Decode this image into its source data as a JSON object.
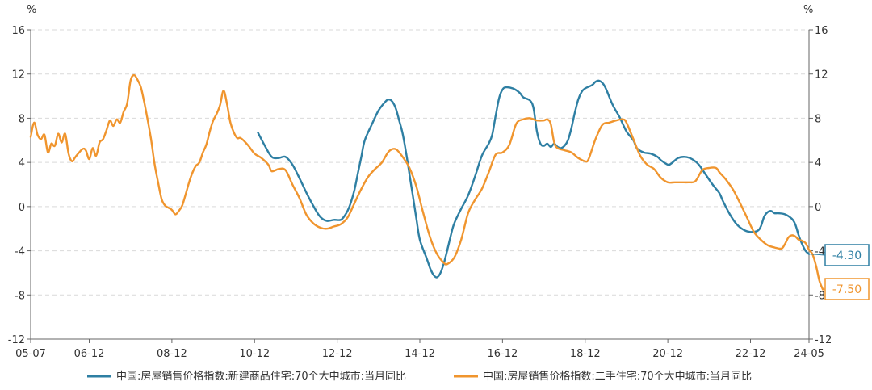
{
  "chart_data": {
    "type": "line",
    "y_unit_left": "%",
    "y_unit_right": "%",
    "ylim": [
      -12,
      16
    ],
    "yticks": [
      -12,
      -8,
      -4,
      0,
      4,
      8,
      12,
      16
    ],
    "x_ticks": [
      "05-07",
      "06-12",
      "08-12",
      "10-12",
      "12-12",
      "14-12",
      "16-12",
      "18-12",
      "20-12",
      "22-12",
      "24-05"
    ],
    "grid": "horizontal-dashed",
    "legend_position": "bottom",
    "series": [
      {
        "name": "中国:房屋销售价格指数:新建商品住宅:70个大中城市:当月同比",
        "color": "#2E7FA3",
        "end_label": "-4.30",
        "points": [
          [
            "2011-01",
            6.7
          ],
          [
            "2011-03",
            5.5
          ],
          [
            "2011-05",
            4.5
          ],
          [
            "2011-07",
            4.4
          ],
          [
            "2011-09",
            4.5
          ],
          [
            "2011-11",
            3.8
          ],
          [
            "2012-01",
            2.6
          ],
          [
            "2012-03",
            1.3
          ],
          [
            "2012-05",
            0.1
          ],
          [
            "2012-07",
            -0.9
          ],
          [
            "2012-09",
            -1.3
          ],
          [
            "2012-11",
            -1.2
          ],
          [
            "2013-01",
            -1.2
          ],
          [
            "2013-02",
            -0.9
          ],
          [
            "2013-03",
            -0.4
          ],
          [
            "2013-04",
            0.4
          ],
          [
            "2013-05",
            1.5
          ],
          [
            "2013-06",
            3.0
          ],
          [
            "2013-07",
            4.5
          ],
          [
            "2013-08",
            6.0
          ],
          [
            "2013-10",
            7.4
          ],
          [
            "2013-12",
            8.7
          ],
          [
            "2014-02",
            9.5
          ],
          [
            "2014-03",
            9.7
          ],
          [
            "2014-04",
            9.5
          ],
          [
            "2014-05",
            8.9
          ],
          [
            "2014-06",
            7.8
          ],
          [
            "2014-07",
            6.6
          ],
          [
            "2014-08",
            4.9
          ],
          [
            "2014-09",
            2.9
          ],
          [
            "2014-10",
            0.9
          ],
          [
            "2014-11",
            -1.1
          ],
          [
            "2014-12",
            -3.0
          ],
          [
            "2015-02",
            -4.7
          ],
          [
            "2015-03",
            -5.6
          ],
          [
            "2015-04",
            -6.2
          ],
          [
            "2015-05",
            -6.4
          ],
          [
            "2015-06",
            -6.0
          ],
          [
            "2015-07",
            -5.1
          ],
          [
            "2015-08",
            -3.9
          ],
          [
            "2015-09",
            -2.6
          ],
          [
            "2015-10",
            -1.5
          ],
          [
            "2015-12",
            -0.2
          ],
          [
            "2016-02",
            1.0
          ],
          [
            "2016-04",
            2.7
          ],
          [
            "2016-06",
            4.6
          ],
          [
            "2016-08",
            5.7
          ],
          [
            "2016-09",
            6.5
          ],
          [
            "2016-10",
            8.2
          ],
          [
            "2016-11",
            9.8
          ],
          [
            "2016-12",
            10.6
          ],
          [
            "2017-01",
            10.8
          ],
          [
            "2017-03",
            10.7
          ],
          [
            "2017-05",
            10.3
          ],
          [
            "2017-06",
            9.9
          ],
          [
            "2017-08",
            9.6
          ],
          [
            "2017-09",
            8.9
          ],
          [
            "2017-10",
            6.8
          ],
          [
            "2017-11",
            5.7
          ],
          [
            "2017-12",
            5.5
          ],
          [
            "2018-01",
            5.7
          ],
          [
            "2018-02",
            5.4
          ],
          [
            "2018-03",
            5.7
          ],
          [
            "2018-04",
            5.4
          ],
          [
            "2018-05",
            5.3
          ],
          [
            "2018-06",
            5.5
          ],
          [
            "2018-07",
            6.0
          ],
          [
            "2018-08",
            7.1
          ],
          [
            "2018-09",
            8.5
          ],
          [
            "2018-10",
            9.7
          ],
          [
            "2018-11",
            10.4
          ],
          [
            "2018-12",
            10.7
          ],
          [
            "2019-02",
            11.0
          ],
          [
            "2019-03",
            11.3
          ],
          [
            "2019-04",
            11.4
          ],
          [
            "2019-05",
            11.2
          ],
          [
            "2019-06",
            10.7
          ],
          [
            "2019-08",
            9.2
          ],
          [
            "2019-10",
            8.1
          ],
          [
            "2019-12",
            6.8
          ],
          [
            "2020-02",
            6.0
          ],
          [
            "2020-03",
            5.3
          ],
          [
            "2020-05",
            4.9
          ],
          [
            "2020-07",
            4.8
          ],
          [
            "2020-09",
            4.5
          ],
          [
            "2020-10",
            4.2
          ],
          [
            "2020-12",
            3.8
          ],
          [
            "2021-01",
            3.9
          ],
          [
            "2021-03",
            4.4
          ],
          [
            "2021-05",
            4.5
          ],
          [
            "2021-07",
            4.3
          ],
          [
            "2021-09",
            3.8
          ],
          [
            "2021-11",
            2.9
          ],
          [
            "2022-01",
            2.0
          ],
          [
            "2022-03",
            1.2
          ],
          [
            "2022-04",
            0.5
          ],
          [
            "2022-06",
            -0.7
          ],
          [
            "2022-08",
            -1.6
          ],
          [
            "2022-10",
            -2.1
          ],
          [
            "2022-12",
            -2.3
          ],
          [
            "2023-02",
            -2.2
          ],
          [
            "2023-03",
            -1.8
          ],
          [
            "2023-04",
            -0.9
          ],
          [
            "2023-05",
            -0.5
          ],
          [
            "2023-06",
            -0.4
          ],
          [
            "2023-07",
            -0.6
          ],
          [
            "2023-08",
            -0.6
          ],
          [
            "2023-10",
            -0.7
          ],
          [
            "2023-12",
            -1.1
          ],
          [
            "2024-01",
            -1.6
          ],
          [
            "2024-02",
            -2.6
          ],
          [
            "2024-03",
            -3.4
          ],
          [
            "2024-04",
            -4.0
          ],
          [
            "2024-05",
            -4.3
          ]
        ]
      },
      {
        "name": "中国:房屋销售价格指数:二手住宅:70个大中城市:当月同比",
        "color": "#F0952E",
        "end_label": "-7.50",
        "points": [
          [
            "2005-07",
            6.3
          ],
          [
            "2005-08",
            7.6
          ],
          [
            "2005-09",
            6.5
          ],
          [
            "2005-10",
            6.1
          ],
          [
            "2005-11",
            6.5
          ],
          [
            "2005-12",
            4.9
          ],
          [
            "2006-01",
            5.7
          ],
          [
            "2006-02",
            5.5
          ],
          [
            "2006-03",
            6.6
          ],
          [
            "2006-04",
            5.8
          ],
          [
            "2006-05",
            6.6
          ],
          [
            "2006-06",
            4.8
          ],
          [
            "2006-07",
            4.1
          ],
          [
            "2006-08",
            4.5
          ],
          [
            "2006-10",
            5.2
          ],
          [
            "2006-11",
            5.1
          ],
          [
            "2006-12",
            4.3
          ],
          [
            "2007-01",
            5.3
          ],
          [
            "2007-02",
            4.6
          ],
          [
            "2007-03",
            5.8
          ],
          [
            "2007-04",
            6.1
          ],
          [
            "2007-05",
            6.9
          ],
          [
            "2007-06",
            7.8
          ],
          [
            "2007-07",
            7.3
          ],
          [
            "2007-08",
            7.9
          ],
          [
            "2007-09",
            7.6
          ],
          [
            "2007-10",
            8.6
          ],
          [
            "2007-11",
            9.3
          ],
          [
            "2007-12",
            11.4
          ],
          [
            "2008-01",
            11.9
          ],
          [
            "2008-02",
            11.5
          ],
          [
            "2008-03",
            10.8
          ],
          [
            "2008-04",
            9.4
          ],
          [
            "2008-05",
            7.8
          ],
          [
            "2008-06",
            6.0
          ],
          [
            "2008-07",
            3.8
          ],
          [
            "2008-08",
            2.2
          ],
          [
            "2008-09",
            0.7
          ],
          [
            "2008-10",
            0.1
          ],
          [
            "2008-11",
            -0.1
          ],
          [
            "2008-12",
            -0.3
          ],
          [
            "2009-01",
            -0.7
          ],
          [
            "2009-02",
            -0.4
          ],
          [
            "2009-03",
            0.1
          ],
          [
            "2009-04",
            1.1
          ],
          [
            "2009-05",
            2.2
          ],
          [
            "2009-06",
            3.1
          ],
          [
            "2009-07",
            3.7
          ],
          [
            "2009-08",
            4.0
          ],
          [
            "2009-09",
            4.9
          ],
          [
            "2009-10",
            5.6
          ],
          [
            "2009-11",
            6.8
          ],
          [
            "2009-12",
            7.8
          ],
          [
            "2010-01",
            8.4
          ],
          [
            "2010-02",
            9.2
          ],
          [
            "2010-03",
            10.5
          ],
          [
            "2010-04",
            9.3
          ],
          [
            "2010-05",
            7.6
          ],
          [
            "2010-06",
            6.7
          ],
          [
            "2010-07",
            6.2
          ],
          [
            "2010-08",
            6.2
          ],
          [
            "2010-10",
            5.6
          ],
          [
            "2010-12",
            4.8
          ],
          [
            "2011-02",
            4.4
          ],
          [
            "2011-04",
            3.8
          ],
          [
            "2011-05",
            3.2
          ],
          [
            "2011-07",
            3.4
          ],
          [
            "2011-09",
            3.3
          ],
          [
            "2011-11",
            2.0
          ],
          [
            "2012-01",
            0.8
          ],
          [
            "2012-03",
            -0.7
          ],
          [
            "2012-05",
            -1.5
          ],
          [
            "2012-07",
            -1.9
          ],
          [
            "2012-09",
            -2.0
          ],
          [
            "2012-11",
            -1.8
          ],
          [
            "2013-01",
            -1.6
          ],
          [
            "2013-03",
            -1.0
          ],
          [
            "2013-05",
            0.3
          ],
          [
            "2013-07",
            1.6
          ],
          [
            "2013-09",
            2.7
          ],
          [
            "2013-11",
            3.4
          ],
          [
            "2014-01",
            4.0
          ],
          [
            "2014-03",
            5.0
          ],
          [
            "2014-05",
            5.2
          ],
          [
            "2014-07",
            4.5
          ],
          [
            "2014-09",
            3.5
          ],
          [
            "2014-11",
            1.8
          ],
          [
            "2015-01",
            -0.6
          ],
          [
            "2015-03",
            -2.8
          ],
          [
            "2015-05",
            -4.3
          ],
          [
            "2015-07",
            -5.1
          ],
          [
            "2015-08",
            -5.2
          ],
          [
            "2015-10",
            -4.6
          ],
          [
            "2015-12",
            -3.0
          ],
          [
            "2016-02",
            -0.6
          ],
          [
            "2016-04",
            0.6
          ],
          [
            "2016-06",
            1.6
          ],
          [
            "2016-08",
            3.1
          ],
          [
            "2016-10",
            4.7
          ],
          [
            "2016-12",
            4.9
          ],
          [
            "2017-02",
            5.6
          ],
          [
            "2017-04",
            7.5
          ],
          [
            "2017-06",
            7.9
          ],
          [
            "2017-08",
            8.0
          ],
          [
            "2017-10",
            7.8
          ],
          [
            "2017-12",
            7.8
          ],
          [
            "2018-01",
            7.9
          ],
          [
            "2018-02",
            7.5
          ],
          [
            "2018-03",
            5.8
          ],
          [
            "2018-04",
            5.3
          ],
          [
            "2018-06",
            5.1
          ],
          [
            "2018-08",
            4.9
          ],
          [
            "2018-10",
            4.4
          ],
          [
            "2018-12",
            4.1
          ],
          [
            "2019-01",
            4.3
          ],
          [
            "2019-03",
            6.1
          ],
          [
            "2019-05",
            7.4
          ],
          [
            "2019-07",
            7.6
          ],
          [
            "2019-09",
            7.8
          ],
          [
            "2019-11",
            7.9
          ],
          [
            "2019-12",
            7.6
          ],
          [
            "2020-02",
            6.1
          ],
          [
            "2020-04",
            4.6
          ],
          [
            "2020-06",
            3.8
          ],
          [
            "2020-08",
            3.4
          ],
          [
            "2020-10",
            2.6
          ],
          [
            "2020-12",
            2.2
          ],
          [
            "2021-02",
            2.2
          ],
          [
            "2021-04",
            2.2
          ],
          [
            "2021-06",
            2.2
          ],
          [
            "2021-08",
            2.3
          ],
          [
            "2021-10",
            3.3
          ],
          [
            "2021-12",
            3.5
          ],
          [
            "2022-02",
            3.5
          ],
          [
            "2022-03",
            3.1
          ],
          [
            "2022-05",
            2.4
          ],
          [
            "2022-07",
            1.5
          ],
          [
            "2022-09",
            0.3
          ],
          [
            "2022-11",
            -1.0
          ],
          [
            "2023-01",
            -2.3
          ],
          [
            "2023-03",
            -3.0
          ],
          [
            "2023-05",
            -3.5
          ],
          [
            "2023-07",
            -3.7
          ],
          [
            "2023-09",
            -3.8
          ],
          [
            "2023-10",
            -3.4
          ],
          [
            "2023-11",
            -2.8
          ],
          [
            "2023-12",
            -2.6
          ],
          [
            "2024-01",
            -2.7
          ],
          [
            "2024-02",
            -3.0
          ],
          [
            "2024-03",
            -3.1
          ],
          [
            "2024-04",
            -3.3
          ],
          [
            "2024-05",
            -3.9
          ],
          [
            "2024-06",
            -4.3
          ],
          [
            "2024-07",
            -5.3
          ],
          [
            "2024-08",
            -6.7
          ],
          [
            "2024-09",
            -7.5
          ]
        ]
      }
    ]
  },
  "colors": {
    "grid": "#d9d9d9",
    "axis": "#666666"
  }
}
